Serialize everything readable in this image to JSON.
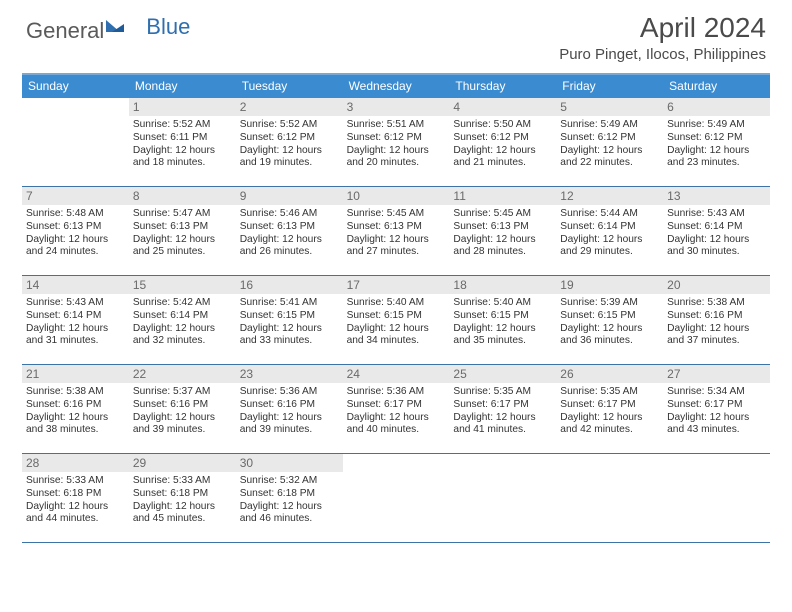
{
  "logo": {
    "general": "General",
    "blue": "Blue"
  },
  "title": "April 2024",
  "location": "Puro Pinget, Ilocos, Philippines",
  "colors": {
    "header_bg": "#3b8bd0",
    "header_text": "#ffffff",
    "border": "#3c74a8",
    "daynum_bg": "#e9e9e9",
    "daynum_text": "#6a6a6a",
    "text": "#333333",
    "logo_blue": "#2f6fb0",
    "logo_gray": "#5a5a5a"
  },
  "dow": [
    "Sunday",
    "Monday",
    "Tuesday",
    "Wednesday",
    "Thursday",
    "Friday",
    "Saturday"
  ],
  "start_offset": 1,
  "days": [
    {
      "n": 1,
      "sunrise": "5:52 AM",
      "sunset": "6:11 PM",
      "daylight": "12 hours and 18 minutes."
    },
    {
      "n": 2,
      "sunrise": "5:52 AM",
      "sunset": "6:12 PM",
      "daylight": "12 hours and 19 minutes."
    },
    {
      "n": 3,
      "sunrise": "5:51 AM",
      "sunset": "6:12 PM",
      "daylight": "12 hours and 20 minutes."
    },
    {
      "n": 4,
      "sunrise": "5:50 AM",
      "sunset": "6:12 PM",
      "daylight": "12 hours and 21 minutes."
    },
    {
      "n": 5,
      "sunrise": "5:49 AM",
      "sunset": "6:12 PM",
      "daylight": "12 hours and 22 minutes."
    },
    {
      "n": 6,
      "sunrise": "5:49 AM",
      "sunset": "6:12 PM",
      "daylight": "12 hours and 23 minutes."
    },
    {
      "n": 7,
      "sunrise": "5:48 AM",
      "sunset": "6:13 PM",
      "daylight": "12 hours and 24 minutes."
    },
    {
      "n": 8,
      "sunrise": "5:47 AM",
      "sunset": "6:13 PM",
      "daylight": "12 hours and 25 minutes."
    },
    {
      "n": 9,
      "sunrise": "5:46 AM",
      "sunset": "6:13 PM",
      "daylight": "12 hours and 26 minutes."
    },
    {
      "n": 10,
      "sunrise": "5:45 AM",
      "sunset": "6:13 PM",
      "daylight": "12 hours and 27 minutes."
    },
    {
      "n": 11,
      "sunrise": "5:45 AM",
      "sunset": "6:13 PM",
      "daylight": "12 hours and 28 minutes."
    },
    {
      "n": 12,
      "sunrise": "5:44 AM",
      "sunset": "6:14 PM",
      "daylight": "12 hours and 29 minutes."
    },
    {
      "n": 13,
      "sunrise": "5:43 AM",
      "sunset": "6:14 PM",
      "daylight": "12 hours and 30 minutes."
    },
    {
      "n": 14,
      "sunrise": "5:43 AM",
      "sunset": "6:14 PM",
      "daylight": "12 hours and 31 minutes."
    },
    {
      "n": 15,
      "sunrise": "5:42 AM",
      "sunset": "6:14 PM",
      "daylight": "12 hours and 32 minutes."
    },
    {
      "n": 16,
      "sunrise": "5:41 AM",
      "sunset": "6:15 PM",
      "daylight": "12 hours and 33 minutes."
    },
    {
      "n": 17,
      "sunrise": "5:40 AM",
      "sunset": "6:15 PM",
      "daylight": "12 hours and 34 minutes."
    },
    {
      "n": 18,
      "sunrise": "5:40 AM",
      "sunset": "6:15 PM",
      "daylight": "12 hours and 35 minutes."
    },
    {
      "n": 19,
      "sunrise": "5:39 AM",
      "sunset": "6:15 PM",
      "daylight": "12 hours and 36 minutes."
    },
    {
      "n": 20,
      "sunrise": "5:38 AM",
      "sunset": "6:16 PM",
      "daylight": "12 hours and 37 minutes."
    },
    {
      "n": 21,
      "sunrise": "5:38 AM",
      "sunset": "6:16 PM",
      "daylight": "12 hours and 38 minutes."
    },
    {
      "n": 22,
      "sunrise": "5:37 AM",
      "sunset": "6:16 PM",
      "daylight": "12 hours and 39 minutes."
    },
    {
      "n": 23,
      "sunrise": "5:36 AM",
      "sunset": "6:16 PM",
      "daylight": "12 hours and 39 minutes."
    },
    {
      "n": 24,
      "sunrise": "5:36 AM",
      "sunset": "6:17 PM",
      "daylight": "12 hours and 40 minutes."
    },
    {
      "n": 25,
      "sunrise": "5:35 AM",
      "sunset": "6:17 PM",
      "daylight": "12 hours and 41 minutes."
    },
    {
      "n": 26,
      "sunrise": "5:35 AM",
      "sunset": "6:17 PM",
      "daylight": "12 hours and 42 minutes."
    },
    {
      "n": 27,
      "sunrise": "5:34 AM",
      "sunset": "6:17 PM",
      "daylight": "12 hours and 43 minutes."
    },
    {
      "n": 28,
      "sunrise": "5:33 AM",
      "sunset": "6:18 PM",
      "daylight": "12 hours and 44 minutes."
    },
    {
      "n": 29,
      "sunrise": "5:33 AM",
      "sunset": "6:18 PM",
      "daylight": "12 hours and 45 minutes."
    },
    {
      "n": 30,
      "sunrise": "5:32 AM",
      "sunset": "6:18 PM",
      "daylight": "12 hours and 46 minutes."
    }
  ],
  "labels": {
    "sunrise": "Sunrise:",
    "sunset": "Sunset:",
    "daylight": "Daylight:"
  }
}
